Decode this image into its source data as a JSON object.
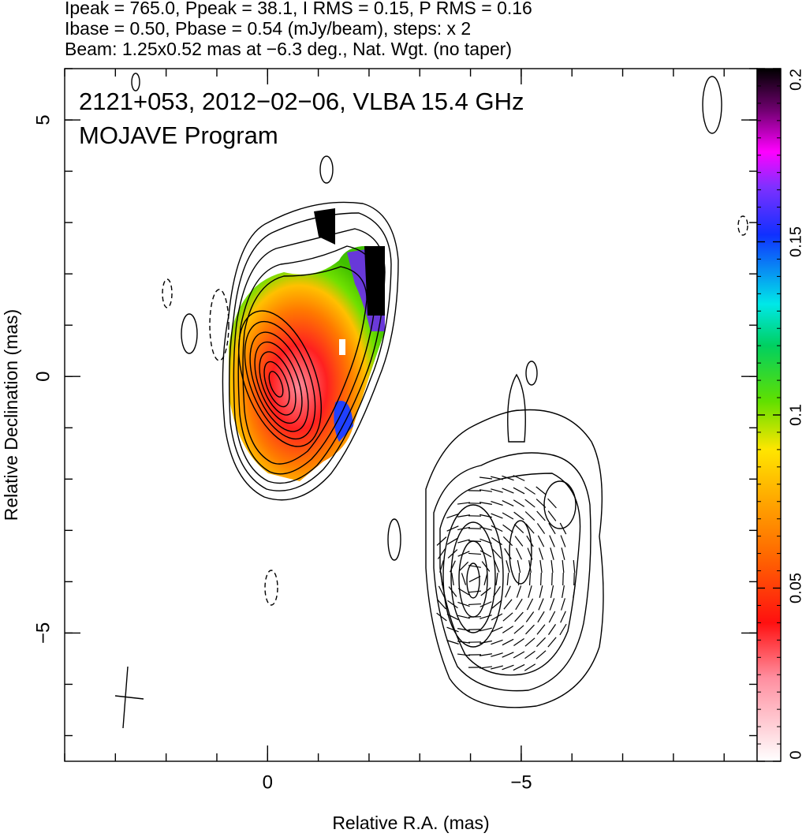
{
  "chart_data": {
    "type": "image",
    "header": [
      "Ipeak = 765.0, Ppeak = 38.1, I RMS = 0.15, P RMS = 0.16",
      "Ibase = 0.50, Pbase = 0.54 (mJy/beam), steps: x 2",
      "Beam: 1.25x0.52 mas at −6.3 deg., Nat. Wgt. (no taper)"
    ],
    "annotation": [
      "2121+053, 2012−02−06, VLBA 15.4 GHz",
      "MOJAVE Program"
    ],
    "xlabel": "Relative R.A. (mas)",
    "ylabel": "Relative Declination (mas)",
    "xlim": [
      4,
      -9.65
    ],
    "ylim": [
      -7.5,
      6
    ],
    "xticks": [
      0,
      {
        "value": -5,
        "label": "−5"
      }
    ],
    "yticks": [
      {
        "value": -5,
        "label": "−5"
      },
      0,
      5
    ],
    "clim": [
      0,
      0.2
    ],
    "cticks": [
      0,
      0.05,
      0.1,
      0.15,
      0.2
    ]
  }
}
